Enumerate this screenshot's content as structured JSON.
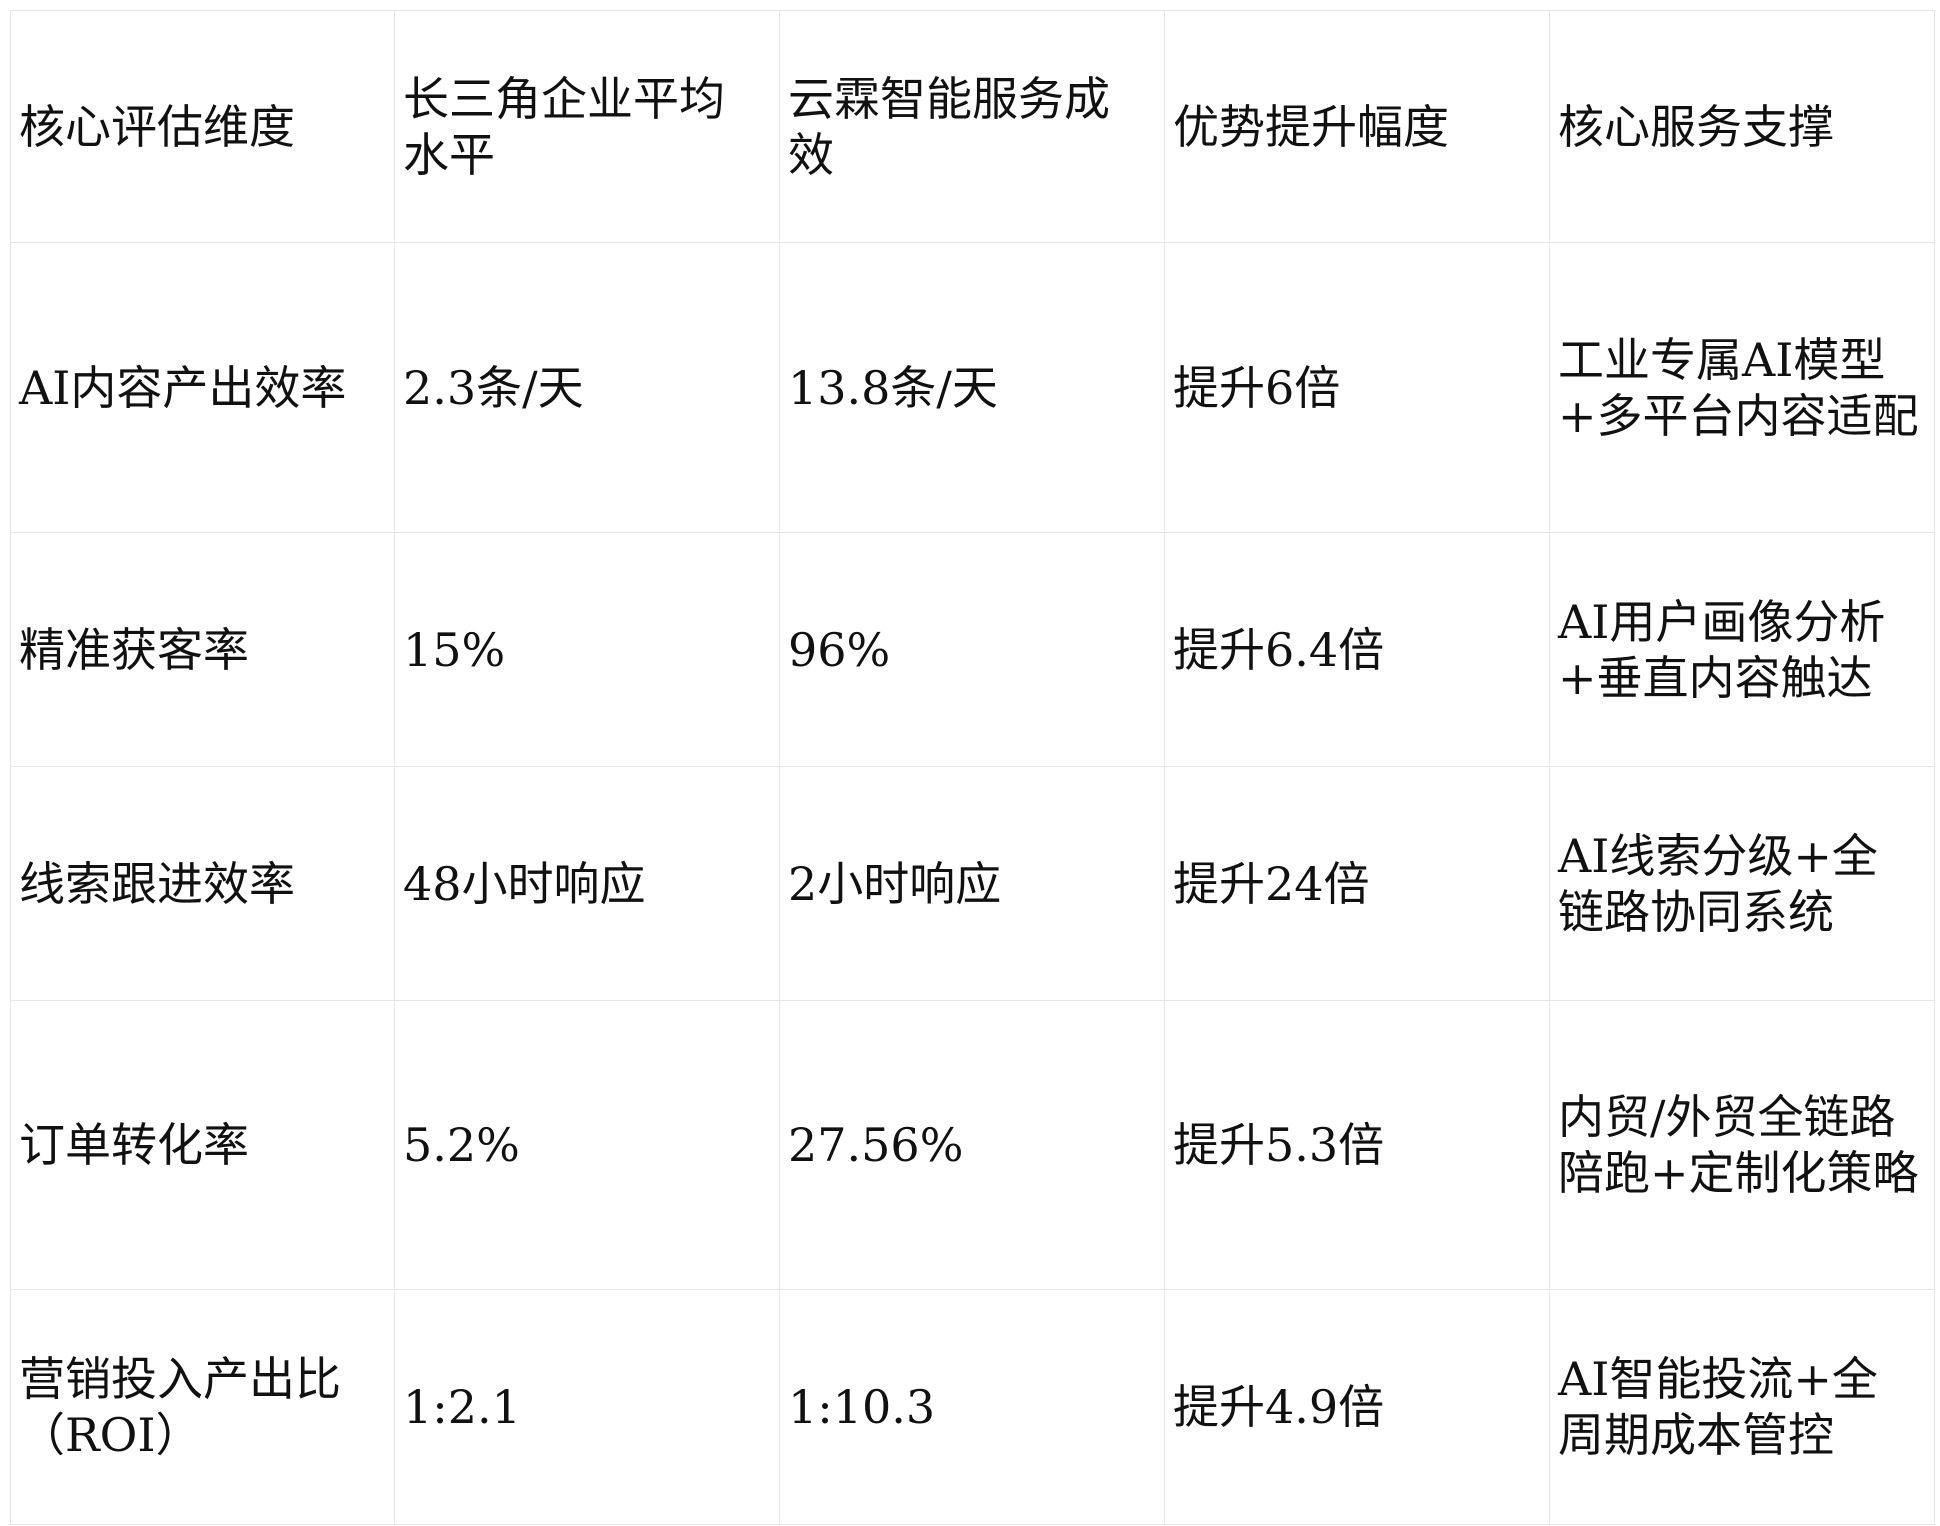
{
  "table": {
    "header": [
      "核心评估维度",
      "长三角企业平均水平",
      "云霖智能服务成效",
      "优势提升幅度",
      "核心服务支撑"
    ],
    "rows": [
      [
        "AI内容产出效率",
        "2.3条/天",
        "13.8条/天",
        "提升6倍",
        "工业专属AI模型+多平台内容适配"
      ],
      [
        "精准获客率",
        "15%",
        "96%",
        "提升6.4倍",
        "AI用户画像分析+垂直内容触达"
      ],
      [
        "线索跟进效率",
        "48小时响应",
        "2小时响应",
        "提升24倍",
        "AI线索分级+全链路协同系统"
      ],
      [
        "订单转化率",
        "5.2%",
        "27.56%",
        "提升5.3倍",
        "内贸/外贸全链路陪跑+定制化策略"
      ],
      [
        "营销投入产出比（ROI）",
        "1:2.1",
        "1:10.3",
        "提升4.9倍",
        "AI智能投流+全周期成本管控"
      ]
    ]
  }
}
